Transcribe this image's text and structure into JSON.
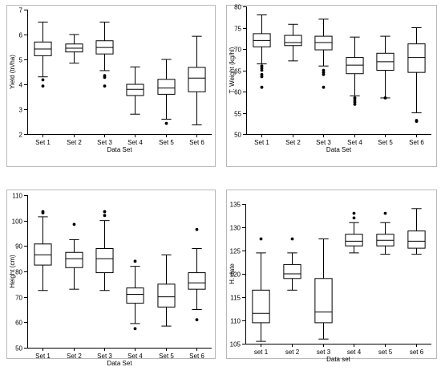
{
  "chart_data": [
    {
      "type": "box",
      "categories": [
        "Set 1",
        "Set 2",
        "Set 3",
        "Set 4",
        "Set 5",
        "Set 6"
      ],
      "xlabel": "Data Set",
      "ylabel": "Yield (tn/ha)",
      "ylim": [
        2,
        7
      ],
      "yticks": [
        2,
        3,
        4,
        5,
        6,
        7
      ],
      "boxes": [
        {
          "category": "Set 1",
          "min": 4.3,
          "q1": 5.15,
          "median": 5.42,
          "q3": 5.7,
          "max": 6.5,
          "outliers": [
            4.18,
            3.93
          ]
        },
        {
          "category": "Set 2",
          "min": 4.85,
          "q1": 5.3,
          "median": 5.45,
          "q3": 5.62,
          "max": 6.0,
          "outliers": []
        },
        {
          "category": "Set 3",
          "min": 4.55,
          "q1": 5.22,
          "median": 5.48,
          "q3": 5.75,
          "max": 6.5,
          "outliers": [
            4.35,
            4.28,
            3.93
          ]
        },
        {
          "category": "Set 4",
          "min": 2.8,
          "q1": 3.55,
          "median": 3.8,
          "q3": 4.0,
          "max": 4.7,
          "outliers": []
        },
        {
          "category": "Set 5",
          "min": 2.6,
          "q1": 3.6,
          "median": 3.85,
          "q3": 4.2,
          "max": 5.0,
          "outliers": [
            2.43
          ]
        },
        {
          "category": "Set 6",
          "min": 2.37,
          "q1": 3.7,
          "median": 4.25,
          "q3": 4.68,
          "max": 5.93,
          "outliers": []
        }
      ]
    },
    {
      "type": "box",
      "categories": [
        "Set 1",
        "Set 2",
        "Set 3",
        "Set 4",
        "Set 5",
        "Set 6"
      ],
      "xlabel": "Data Set",
      "ylabel": "T. Weight (kg/hl)",
      "ylim": [
        50,
        80
      ],
      "yticks": [
        50,
        55,
        60,
        65,
        70,
        75,
        80
      ],
      "boxes": [
        {
          "category": "Set 1",
          "min": 66.5,
          "q1": 70.5,
          "median": 72.0,
          "q3": 73.6,
          "max": 78.0,
          "outliers": [
            66.0,
            65.5,
            65.0,
            64.0,
            63.5,
            61.0
          ]
        },
        {
          "category": "Set 2",
          "min": 67.2,
          "q1": 70.8,
          "median": 71.5,
          "q3": 73.2,
          "max": 75.8,
          "outliers": []
        },
        {
          "category": "Set 3",
          "min": 66.0,
          "q1": 69.8,
          "median": 71.5,
          "q3": 73.0,
          "max": 77.0,
          "outliers": [
            65.0,
            64.5,
            64.0,
            61.0
          ]
        },
        {
          "category": "Set 4",
          "min": 59.0,
          "q1": 64.2,
          "median": 66.2,
          "q3": 68.0,
          "max": 72.8,
          "outliers": [
            58.5,
            58.0,
            57.5,
            57.0
          ]
        },
        {
          "category": "Set 5",
          "min": 58.5,
          "q1": 65.0,
          "median": 67.0,
          "q3": 69.0,
          "max": 73.0,
          "outliers": [
            58.5
          ]
        },
        {
          "category": "Set 6",
          "min": 55.0,
          "q1": 64.5,
          "median": 68.0,
          "q3": 71.2,
          "max": 75.0,
          "outliers": [
            53.2,
            53.0
          ]
        }
      ]
    },
    {
      "type": "box",
      "categories": [
        "Set 1",
        "Set 2",
        "Set 3",
        "Set 4",
        "Set 5",
        "Set 6"
      ],
      "xlabel": "Data Set",
      "ylabel": "Height (cm)",
      "ylim": [
        50,
        110
      ],
      "yticks": [
        50,
        60,
        70,
        80,
        90,
        100,
        110
      ],
      "boxes": [
        {
          "category": "Set 1",
          "min": 72.5,
          "q1": 82.5,
          "median": 86.5,
          "q3": 90.8,
          "max": 101.5,
          "outliers": [
            103.0,
            103.5
          ]
        },
        {
          "category": "Set 2",
          "min": 73.0,
          "q1": 81.5,
          "median": 85.0,
          "q3": 87.5,
          "max": 92.5,
          "outliers": [
            98.5
          ]
        },
        {
          "category": "Set 3",
          "min": 72.5,
          "q1": 79.5,
          "median": 85.0,
          "q3": 89.0,
          "max": 100.0,
          "outliers": [
            102.0,
            103.5
          ]
        },
        {
          "category": "Set 4",
          "min": 59.5,
          "q1": 67.5,
          "median": 71.0,
          "q3": 73.5,
          "max": 82.0,
          "outliers": [
            84.0,
            57.5
          ]
        },
        {
          "category": "Set 5",
          "min": 58.5,
          "q1": 66.0,
          "median": 70.0,
          "q3": 75.0,
          "max": 86.5,
          "outliers": []
        },
        {
          "category": "Set 6",
          "min": 65.0,
          "q1": 73.0,
          "median": 75.5,
          "q3": 79.5,
          "max": 89.0,
          "outliers": [
            96.5,
            61.0
          ]
        }
      ]
    },
    {
      "type": "box",
      "categories": [
        "set 1",
        "set 2",
        "set 3",
        "set 4",
        "set 5",
        "set 6"
      ],
      "xlabel": "Data set",
      "ylabel": "H. date",
      "ylim": [
        105,
        135
      ],
      "yticks": [
        105,
        110,
        115,
        120,
        125,
        130,
        135
      ],
      "boxes": [
        {
          "category": "set 1",
          "min": 105.5,
          "q1": 109.5,
          "median": 111.5,
          "q3": 116.5,
          "max": 124.5,
          "outliers": [
            127.5
          ]
        },
        {
          "category": "set 2",
          "min": 116.5,
          "q1": 119.0,
          "median": 120.0,
          "q3": 122.0,
          "max": 124.5,
          "outliers": [
            127.5
          ]
        },
        {
          "category": "set 3",
          "min": 106.0,
          "q1": 109.5,
          "median": 111.8,
          "q3": 119.0,
          "max": 127.5,
          "outliers": []
        },
        {
          "category": "set 4",
          "min": 124.5,
          "q1": 126.0,
          "median": 127.0,
          "q3": 128.5,
          "max": 131.0,
          "outliers": [
            132.0,
            133.0
          ]
        },
        {
          "category": "set 5",
          "min": 124.2,
          "q1": 126.0,
          "median": 127.2,
          "q3": 128.5,
          "max": 131.0,
          "outliers": [
            133.0
          ]
        },
        {
          "category": "set 6",
          "min": 124.2,
          "q1": 125.5,
          "median": 127.0,
          "q3": 129.2,
          "max": 134.0,
          "outliers": []
        }
      ]
    }
  ]
}
